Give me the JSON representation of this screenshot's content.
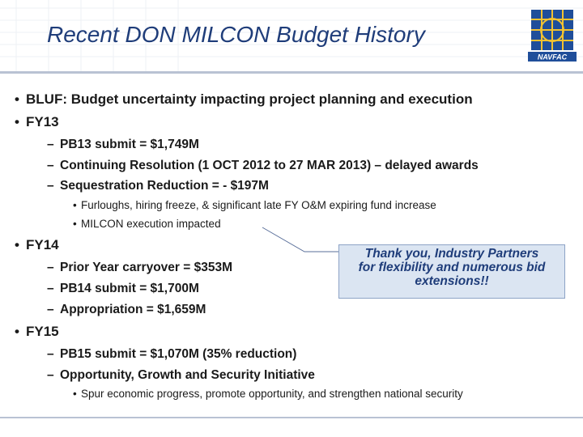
{
  "slide": {
    "title": "Recent DON MILCON Budget History",
    "logo_text": "NAVFAC",
    "bullets": [
      {
        "text": "BLUF: Budget uncertainty impacting project planning and execution"
      },
      {
        "text": "FY13"
      },
      {
        "text": "FY14"
      },
      {
        "text": "FY15"
      }
    ],
    "fy13": {
      "subs": [
        "PB13 submit = $1,749M",
        "Continuing Resolution (1 OCT 2012 to 27 MAR 2013) – delayed awards",
        "Sequestration Reduction = - $197M"
      ],
      "details": [
        "Furloughs, hiring freeze, & significant late FY O&M expiring fund increase",
        "MILCON execution impacted"
      ]
    },
    "fy14": {
      "subs": [
        "Prior Year carryover = $353M",
        "PB14 submit = $1,700M",
        "Appropriation = $1,659M"
      ]
    },
    "fy15": {
      "subs": [
        "PB15 submit = $1,070M (35% reduction)",
        "Opportunity, Growth and Security Initiative"
      ],
      "details": [
        "Spur economic progress, promote opportunity, and strengthen national security"
      ]
    },
    "callout": {
      "lines": [
        "Thank you, Industry Partners",
        "for flexibility and numerous bid",
        "extensions!!"
      ]
    }
  },
  "colors": {
    "title": "#1f3d7a",
    "callout_bg": "#dbe5f2",
    "rule": "#b9c2d3"
  }
}
